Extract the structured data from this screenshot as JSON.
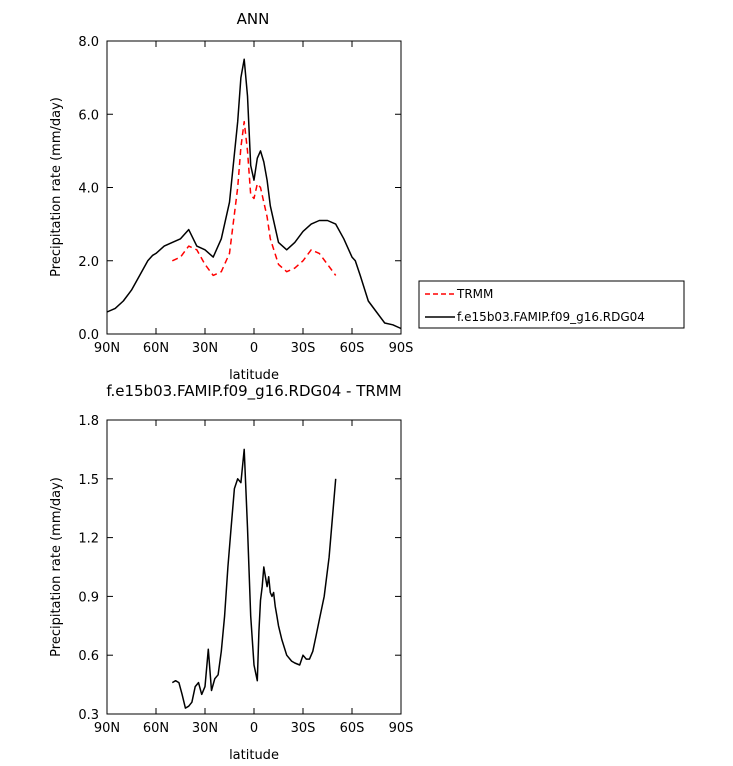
{
  "chart_data": [
    {
      "type": "line",
      "title": "ANN",
      "xlabel": "latitude",
      "ylabel": "Precipitation rate (mm/day)",
      "xlim": [
        90,
        -90
      ],
      "ylim": [
        0,
        8
      ],
      "x_tick_values": [
        90,
        60,
        30,
        0,
        -30,
        -60,
        -90
      ],
      "x_tick_labels": [
        "90N",
        "60N",
        "30N",
        "0",
        "30S",
        "60S",
        "90S"
      ],
      "y_tick_values": [
        0,
        2,
        4,
        6,
        8
      ],
      "y_tick_labels": [
        "0.0",
        "2.0",
        "4.0",
        "6.0",
        "8.0"
      ],
      "grid": false,
      "legend_position": "right",
      "series": [
        {
          "name": "TRMM",
          "color": "#ff0000",
          "style": "dashed",
          "x": [
            50,
            45,
            40,
            35,
            30,
            25,
            20,
            15,
            10,
            8,
            6,
            4,
            2,
            0,
            -2,
            -4,
            -6,
            -8,
            -10,
            -15,
            -20,
            -25,
            -30,
            -35,
            -40,
            -45,
            -50
          ],
          "y": [
            2.0,
            2.1,
            2.4,
            2.3,
            1.9,
            1.6,
            1.7,
            2.2,
            4.0,
            5.1,
            5.8,
            5.0,
            3.8,
            3.7,
            4.1,
            4.0,
            3.6,
            3.2,
            2.6,
            1.9,
            1.7,
            1.8,
            2.0,
            2.3,
            2.2,
            1.9,
            1.6
          ]
        },
        {
          "name": "f.e15b03.FAMIP.f09_g16.RDG04",
          "color": "#000000",
          "style": "solid",
          "x": [
            90,
            85,
            80,
            75,
            70,
            65,
            62,
            60,
            55,
            50,
            45,
            40,
            35,
            30,
            25,
            20,
            15,
            10,
            8,
            6,
            4,
            2,
            0,
            -2,
            -4,
            -6,
            -8,
            -10,
            -15,
            -20,
            -25,
            -30,
            -35,
            -40,
            -45,
            -50,
            -55,
            -60,
            -62,
            -65,
            -70,
            -75,
            -80,
            -85,
            -90
          ],
          "y": [
            0.6,
            0.7,
            0.9,
            1.2,
            1.6,
            2.0,
            2.15,
            2.2,
            2.4,
            2.5,
            2.6,
            2.85,
            2.4,
            2.3,
            2.1,
            2.6,
            3.6,
            5.8,
            7.0,
            7.5,
            6.5,
            4.6,
            4.2,
            4.8,
            5.0,
            4.7,
            4.2,
            3.5,
            2.5,
            2.3,
            2.5,
            2.8,
            3.0,
            3.1,
            3.1,
            3.0,
            2.6,
            2.1,
            2.0,
            1.6,
            0.9,
            0.6,
            0.3,
            0.25,
            0.15
          ]
        }
      ]
    },
    {
      "type": "line",
      "title": "f.e15b03.FAMIP.f09_g16.RDG04 - TRMM",
      "xlabel": "latitude",
      "ylabel": "Precipitation rate (mm/day)",
      "xlim": [
        90,
        -90
      ],
      "ylim": [
        0.3,
        1.8
      ],
      "x_tick_values": [
        90,
        60,
        30,
        0,
        -30,
        -60,
        -90
      ],
      "x_tick_labels": [
        "90N",
        "60N",
        "30N",
        "0",
        "30S",
        "60S",
        "90S"
      ],
      "y_tick_values": [
        0.3,
        0.6,
        0.9,
        1.2,
        1.5,
        1.8
      ],
      "y_tick_labels": [
        "0.3",
        "0.6",
        "0.9",
        "1.2",
        "1.5",
        "1.8"
      ],
      "grid": false,
      "series": [
        {
          "color": "#000000",
          "style": "solid",
          "x": [
            50,
            48,
            46,
            44,
            42,
            40,
            38,
            36,
            34,
            32,
            30,
            28,
            26,
            24,
            22,
            20,
            18,
            16,
            14,
            12,
            10,
            8,
            6,
            4,
            2,
            0,
            -2,
            -3,
            -4,
            -5,
            -6,
            -7,
            -8,
            -9,
            -10,
            -11,
            -12,
            -13,
            -14,
            -15,
            -17,
            -20,
            -23,
            -25,
            -28,
            -30,
            -32,
            -34,
            -36,
            -38,
            -40,
            -43,
            -46,
            -48,
            -50
          ],
          "y": [
            0.46,
            0.47,
            0.46,
            0.4,
            0.33,
            0.34,
            0.36,
            0.44,
            0.46,
            0.4,
            0.44,
            0.63,
            0.42,
            0.48,
            0.5,
            0.62,
            0.8,
            1.05,
            1.25,
            1.45,
            1.5,
            1.48,
            1.65,
            1.25,
            0.8,
            0.55,
            0.47,
            0.72,
            0.88,
            0.95,
            1.05,
            1.0,
            0.95,
            1.0,
            0.92,
            0.9,
            0.92,
            0.85,
            0.8,
            0.75,
            0.68,
            0.6,
            0.57,
            0.56,
            0.55,
            0.6,
            0.58,
            0.58,
            0.62,
            0.7,
            0.78,
            0.9,
            1.1,
            1.3,
            1.5
          ]
        }
      ]
    }
  ]
}
